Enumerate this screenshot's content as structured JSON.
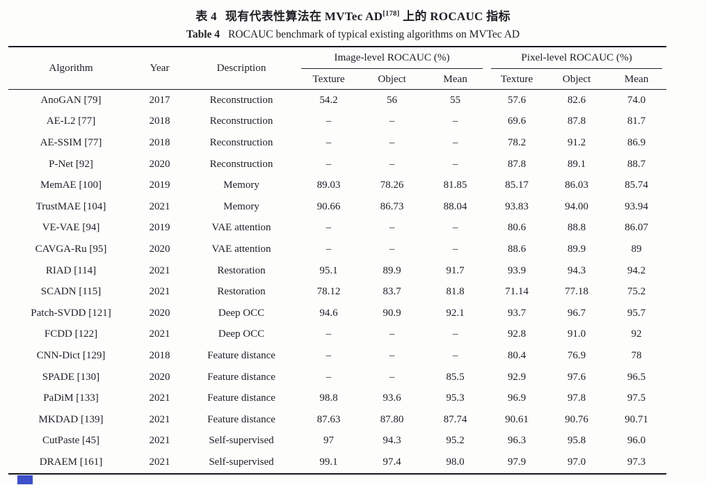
{
  "caption": {
    "zh": {
      "label": "表 4",
      "text_before_sup": "现有代表性算法在 MVTec AD",
      "superscript": "[178]",
      "text_after_sup": "上的 ROCAUC 指标"
    },
    "en": {
      "label": "Table 4",
      "text": "ROCAUC benchmark of typical existing algorithms on MVTec AD"
    }
  },
  "table": {
    "columns": [
      "Algorithm",
      "Year",
      "Description"
    ],
    "groups": [
      {
        "label": "Image-level ROCAUC (%)",
        "subcolumns": [
          "Texture",
          "Object",
          "Mean"
        ]
      },
      {
        "label": "Pixel-level ROCAUC (%)",
        "subcolumns": [
          "Texture",
          "Object",
          "Mean"
        ]
      }
    ],
    "rows": [
      [
        "AnoGAN [79]",
        "2017",
        "Reconstruction",
        "54.2",
        "56",
        "55",
        "57.6",
        "82.6",
        "74.0"
      ],
      [
        "AE-L2 [77]",
        "2018",
        "Reconstruction",
        "–",
        "–",
        "–",
        "69.6",
        "87.8",
        "81.7"
      ],
      [
        "AE-SSIM [77]",
        "2018",
        "Reconstruction",
        "–",
        "–",
        "–",
        "78.2",
        "91.2",
        "86.9"
      ],
      [
        "P-Net [92]",
        "2020",
        "Reconstruction",
        "–",
        "–",
        "–",
        "87.8",
        "89.1",
        "88.7"
      ],
      [
        "MemAE [100]",
        "2019",
        "Memory",
        "89.03",
        "78.26",
        "81.85",
        "85.17",
        "86.03",
        "85.74"
      ],
      [
        "TrustMAE [104]",
        "2021",
        "Memory",
        "90.66",
        "86.73",
        "88.04",
        "93.83",
        "94.00",
        "93.94"
      ],
      [
        "VE-VAE [94]",
        "2019",
        "VAE attention",
        "–",
        "–",
        "–",
        "80.6",
        "88.8",
        "86.07"
      ],
      [
        "CAVGA-Ru [95]",
        "2020",
        "VAE attention",
        "–",
        "–",
        "–",
        "88.6",
        "89.9",
        "89"
      ],
      [
        "RIAD [114]",
        "2021",
        "Restoration",
        "95.1",
        "89.9",
        "91.7",
        "93.9",
        "94.3",
        "94.2"
      ],
      [
        "SCADN [115]",
        "2021",
        "Restoration",
        "78.12",
        "83.7",
        "81.8",
        "71.14",
        "77.18",
        "75.2"
      ],
      [
        "Patch-SVDD [121]",
        "2020",
        "Deep OCC",
        "94.6",
        "90.9",
        "92.1",
        "93.7",
        "96.7",
        "95.7"
      ],
      [
        "FCDD [122]",
        "2021",
        "Deep OCC",
        "–",
        "–",
        "–",
        "92.8",
        "91.0",
        "92"
      ],
      [
        "CNN-Dict [129]",
        "2018",
        "Feature distance",
        "–",
        "–",
        "–",
        "80.4",
        "76.9",
        "78"
      ],
      [
        "SPADE [130]",
        "2020",
        "Feature distance",
        "–",
        "–",
        "85.5",
        "92.9",
        "97.6",
        "96.5"
      ],
      [
        "PaDiM [133]",
        "2021",
        "Feature distance",
        "98.8",
        "93.6",
        "95.3",
        "96.9",
        "97.8",
        "97.5"
      ],
      [
        "MKDAD [139]",
        "2021",
        "Feature distance",
        "87.63",
        "87.80",
        "87.74",
        "90.61",
        "90.76",
        "90.71"
      ],
      [
        "CutPaste [45]",
        "2021",
        "Self-supervised",
        "97",
        "94.3",
        "95.2",
        "96.3",
        "95.8",
        "96.0"
      ],
      [
        "DRAEM [161]",
        "2021",
        "Self-supervised",
        "99.1",
        "97.4",
        "98.0",
        "97.9",
        "97.0",
        "97.3"
      ]
    ]
  },
  "artifact": {
    "color": "#3d50c9"
  }
}
